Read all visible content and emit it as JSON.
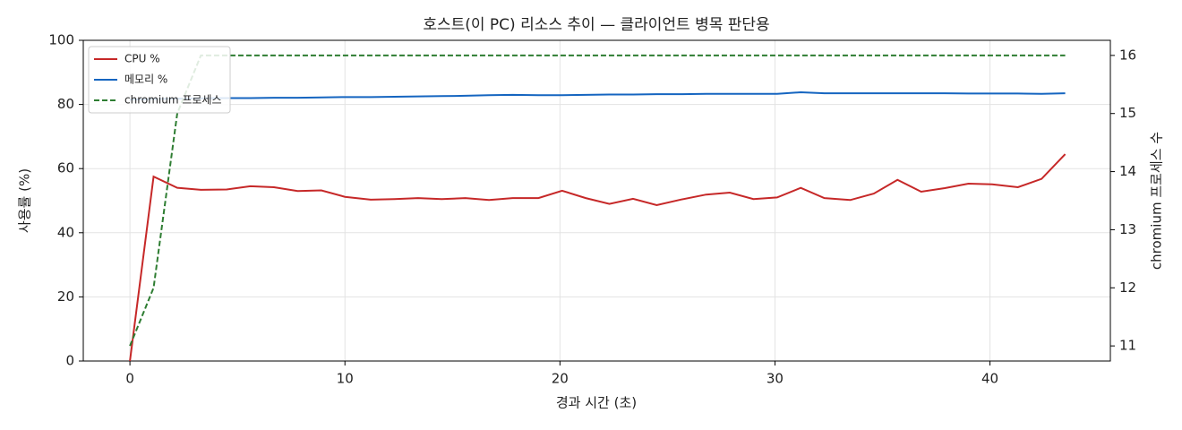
{
  "chart_data": {
    "type": "line",
    "title": "호스트(이 PC) 리소스 추이 — 클라이언트 병목 판단용",
    "x_label": "경과 시간 (초)",
    "y_label": "사용률 (%)",
    "y2_label": "chromium 프로세스 수",
    "x": [
      0,
      1.1,
      2.2,
      3.3,
      4.5,
      5.6,
      6.7,
      7.8,
      8.9,
      10.0,
      11.2,
      12.3,
      13.4,
      14.5,
      15.6,
      16.7,
      17.8,
      19.0,
      20.1,
      21.2,
      22.3,
      23.4,
      24.5,
      25.6,
      26.8,
      27.9,
      29.0,
      30.1,
      31.2,
      32.3,
      33.5,
      34.6,
      35.7,
      36.8,
      37.9,
      39.0,
      40.1,
      41.3,
      42.4,
      43.5
    ],
    "series": [
      {
        "name": "CPU %",
        "color": "#c62828",
        "style": "solid",
        "values": [
          0,
          57.5,
          54,
          53.4,
          53.5,
          54.5,
          54.2,
          53,
          53.2,
          51.2,
          50.3,
          50.5,
          50.8,
          50.5,
          50.8,
          50.2,
          50.8,
          50.8,
          53.1,
          50.8,
          49,
          50.6,
          48.6,
          50.3,
          51.9,
          52.5,
          50.5,
          51,
          54,
          50.8,
          50.2,
          52.2,
          56.5,
          52.8,
          53.9,
          55.3,
          55.1,
          54.2,
          56.8,
          64.5
        ]
      },
      {
        "name": "메모리 %",
        "color": "#1565c0",
        "style": "solid",
        "values": [
          81.5,
          81.7,
          81.8,
          81.9,
          82,
          82,
          82.1,
          82.1,
          82.2,
          82.3,
          82.3,
          82.4,
          82.5,
          82.6,
          82.7,
          82.9,
          83,
          82.9,
          82.9,
          83,
          83.1,
          83.1,
          83.2,
          83.2,
          83.3,
          83.3,
          83.3,
          83.3,
          83.8,
          83.5,
          83.5,
          83.5,
          83.5,
          83.5,
          83.5,
          83.4,
          83.4,
          83.4,
          83.3,
          83.5
        ]
      },
      {
        "name": "chromium 프로세스",
        "color": "#2e7d32",
        "style": "dashed",
        "axis": "y2",
        "values": [
          11,
          12,
          15,
          16,
          16,
          16,
          16,
          16,
          16,
          16,
          16,
          16,
          16,
          16,
          16,
          16,
          16,
          16,
          16,
          16,
          16,
          16,
          16,
          16,
          16,
          16,
          16,
          16,
          16,
          16,
          16,
          16,
          16,
          16,
          16,
          16,
          16,
          16,
          16,
          16
        ]
      }
    ],
    "xlim": [
      -2.17,
      45.6
    ],
    "xticks": [
      0,
      10,
      20,
      30,
      40
    ],
    "ylim": [
      0,
      100
    ],
    "yticks": [
      0,
      20,
      40,
      60,
      80,
      100
    ],
    "y2lim": [
      10.74,
      16.26
    ],
    "y2ticks": [
      11,
      12,
      13,
      14,
      15,
      16
    ],
    "grid": true,
    "legend": "upper-left"
  }
}
